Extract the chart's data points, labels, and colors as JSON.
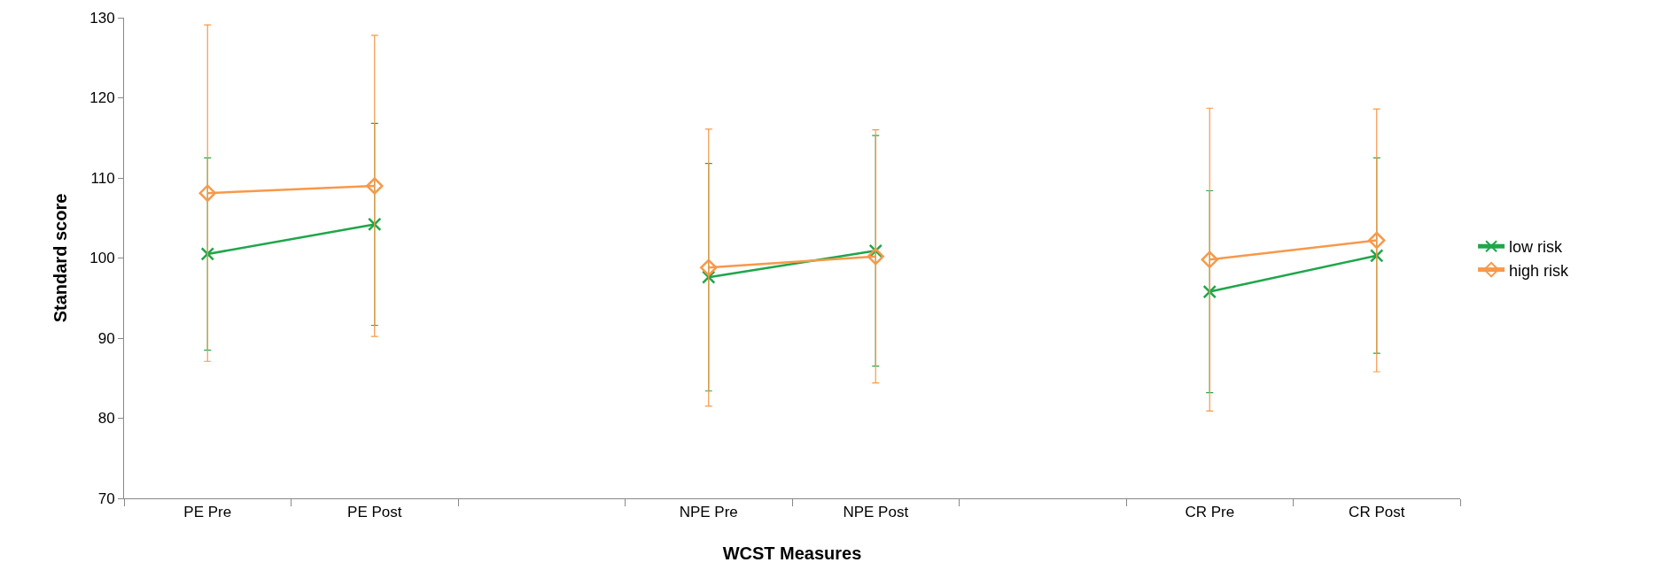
{
  "chart_data": {
    "type": "line",
    "xlabel": "WCST Measures",
    "ylabel": "Standard score",
    "categories": [
      "PE Pre",
      "PE Post",
      null,
      "NPE Pre",
      "NPE Post",
      null,
      "CR Pre",
      "CR Post"
    ],
    "ylim": [
      70,
      130
    ],
    "yticks": [
      70,
      80,
      90,
      100,
      110,
      120,
      130
    ],
    "legend": "right",
    "series": [
      {
        "name": "low risk",
        "color": "#1fa64a",
        "marker": "cross",
        "values": [
          100.5,
          104.2,
          null,
          97.6,
          100.9,
          null,
          95.8,
          100.3
        ],
        "errors": [
          12,
          12.6,
          null,
          14.2,
          14.4,
          null,
          12.6,
          12.2
        ]
      },
      {
        "name": "high risk",
        "color": "#f7994a",
        "marker": "diamond",
        "values": [
          108.1,
          109.0,
          null,
          98.8,
          100.2,
          null,
          99.8,
          102.2
        ],
        "errors": [
          21,
          18.8,
          null,
          17.3,
          15.8,
          null,
          18.9,
          16.4
        ]
      }
    ]
  }
}
